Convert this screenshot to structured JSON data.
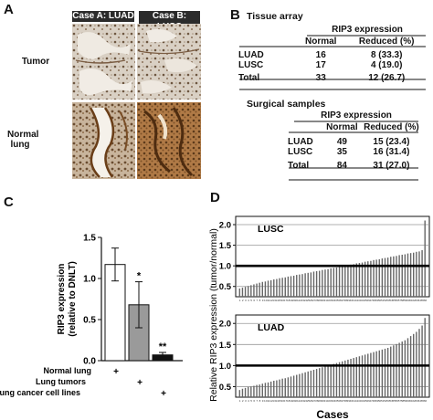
{
  "panels": {
    "a": "A",
    "b": "B",
    "c": "C",
    "d": "D"
  },
  "panel_a": {
    "case_a": "Case A: LUAD",
    "case_b": "Case B: LUSC",
    "row_tumor": "Tumor",
    "row_normal": "Normal lung"
  },
  "panel_b": {
    "tissue_title": "Tissue array",
    "surgical_title": "Surgical samples",
    "span_header": "RIP3 expression",
    "col_normal": "Normal",
    "col_reduced": "Reduced (%)",
    "tissue_rows": [
      {
        "label": "LUAD",
        "normal": "16",
        "reduced": "8 (33.3)"
      },
      {
        "label": "LUSC",
        "normal": "17",
        "reduced": "4 (19.0)"
      },
      {
        "label": "Total",
        "normal": "33",
        "reduced": "12 (26.7)"
      }
    ],
    "surgical_rows": [
      {
        "label": "LUAD",
        "normal": "49",
        "reduced": "15 (23.4)"
      },
      {
        "label": "LUSC",
        "normal": "35",
        "reduced": "16 (31.4)"
      },
      {
        "label": "Total",
        "normal": "84",
        "reduced": "31 (27.0)"
      }
    ]
  },
  "chart_data": [
    {
      "type": "bar",
      "panel": "C",
      "ylabel": "RIP3 expression (relative to DNLT)",
      "ylim": [
        0,
        1.5
      ],
      "yticks": [
        "0.0",
        "0.5",
        "1.0",
        "1.5"
      ],
      "categories": [
        "Normal lung",
        "Lung tumors",
        "Lung cancer cell lines"
      ],
      "values": [
        1.17,
        0.68,
        0.07
      ],
      "errors": [
        0.2,
        0.28,
        0.03
      ],
      "significance": [
        "",
        "*",
        "**"
      ],
      "fills": [
        "#ffffff",
        "#9a9a9a",
        "#111111"
      ],
      "group_marks": [
        "+",
        "+",
        "+"
      ]
    },
    {
      "type": "bar",
      "panel": "D",
      "title": "LUSC",
      "ylabel": "Relative RIP3 expression (tumor/normal)",
      "xlabel": "Cases",
      "reference_line": 1.0,
      "yticks": [
        "0.5",
        "1.0",
        "1.5",
        "2.0"
      ],
      "ylim": [
        0.25,
        2.2
      ],
      "n_cases": 66,
      "values_sorted_ascending": [
        0.45,
        0.47,
        0.49,
        0.51,
        0.53,
        0.55,
        0.57,
        0.59,
        0.61,
        0.62,
        0.64,
        0.65,
        0.67,
        0.68,
        0.7,
        0.71,
        0.72,
        0.74,
        0.75,
        0.76,
        0.78,
        0.79,
        0.8,
        0.82,
        0.83,
        0.84,
        0.86,
        0.87,
        0.88,
        0.9,
        0.91,
        0.92,
        0.94,
        0.95,
        0.96,
        0.98,
        0.99,
        1.0,
        1.02,
        1.03,
        1.04,
        1.06,
        1.07,
        1.08,
        1.1,
        1.11,
        1.12,
        1.14,
        1.15,
        1.16,
        1.18,
        1.19,
        1.2,
        1.22,
        1.23,
        1.24,
        1.26,
        1.27,
        1.28,
        1.3,
        1.31,
        1.32,
        1.34,
        1.35,
        1.38,
        2.1
      ]
    },
    {
      "type": "bar",
      "panel": "D",
      "title": "LUAD",
      "ylabel": "Relative RIP3 expression (tumor/normal)",
      "xlabel": "Cases",
      "reference_line": 1.0,
      "yticks": [
        "0.5",
        "1.0",
        "1.5",
        "2.0"
      ],
      "ylim": [
        0.25,
        2.2
      ],
      "n_cases": 66,
      "values_sorted_ascending": [
        0.42,
        0.45,
        0.47,
        0.49,
        0.5,
        0.52,
        0.54,
        0.55,
        0.57,
        0.59,
        0.6,
        0.62,
        0.64,
        0.65,
        0.67,
        0.69,
        0.7,
        0.72,
        0.74,
        0.76,
        0.78,
        0.8,
        0.82,
        0.84,
        0.86,
        0.88,
        0.9,
        0.92,
        0.94,
        0.96,
        0.98,
        1.0,
        1.02,
        1.04,
        1.06,
        1.08,
        1.1,
        1.12,
        1.14,
        1.16,
        1.18,
        1.2,
        1.22,
        1.24,
        1.26,
        1.28,
        1.3,
        1.32,
        1.34,
        1.36,
        1.38,
        1.4,
        1.42,
        1.45,
        1.48,
        1.51,
        1.54,
        1.57,
        1.6,
        1.65,
        1.7,
        1.75,
        1.8,
        1.87,
        1.95,
        2.13
      ]
    }
  ]
}
